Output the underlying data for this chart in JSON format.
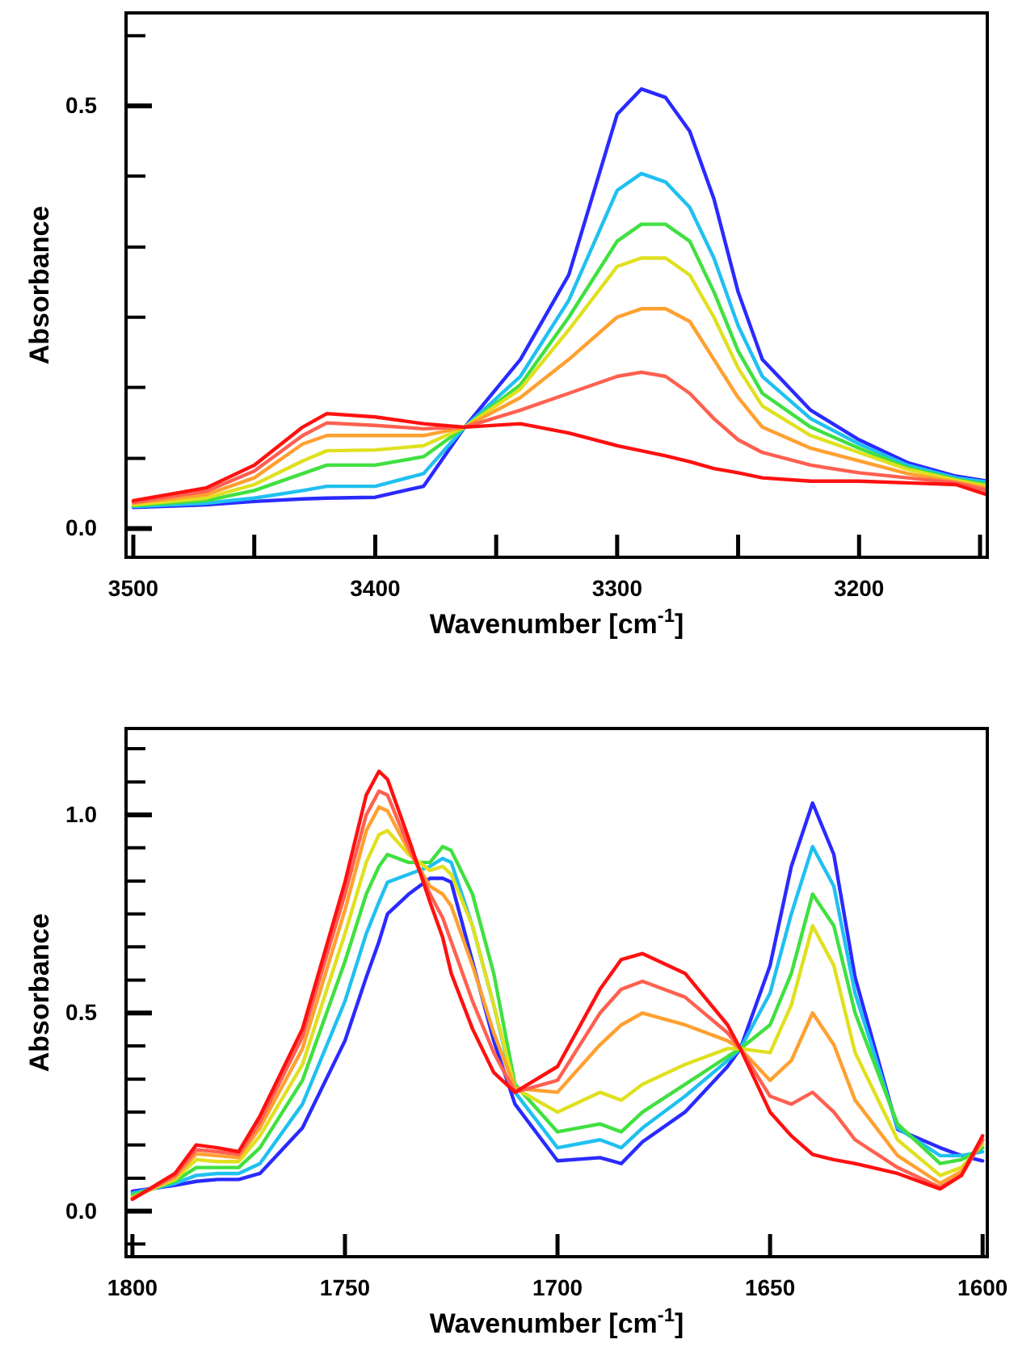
{
  "chart_data": [
    {
      "type": "line",
      "xlabel": "Wavenumber [cm$^{-1}$]",
      "ylabel": "Absorbance",
      "xlim": [
        3503,
        3147
      ],
      "ylim": [
        -0.034,
        0.61
      ],
      "xticks": [
        3500,
        {
          "value": 3450,
          "label": null
        },
        3400,
        {
          "value": 3350,
          "label": null
        },
        3300,
        {
          "value": 3250,
          "label": null
        },
        3200,
        {
          "value": 3150,
          "label": null
        }
      ],
      "yticks": [
        {
          "value": 0,
          "label": "0.0"
        },
        {
          "value": 0.083,
          "label": null
        },
        {
          "value": 0.167,
          "label": null
        },
        {
          "value": 0.25,
          "label": null
        },
        {
          "value": 0.333,
          "label": null
        },
        {
          "value": 0.417,
          "label": null
        },
        {
          "value": 0.5,
          "label": "0.5"
        },
        {
          "value": 0.583,
          "label": null
        }
      ],
      "x": [
        3500,
        3470,
        3450,
        3430,
        3420,
        3400,
        3380,
        3363,
        3340,
        3320,
        3300,
        3290,
        3280,
        3270,
        3260,
        3250,
        3240,
        3220,
        3200,
        3180,
        3160,
        3147
      ],
      "series": [
        {
          "color": "#2a2aff",
          "values": [
            0.025,
            0.028,
            0.032,
            0.035,
            0.036,
            0.037,
            0.05,
            0.12,
            0.2,
            0.3,
            0.49,
            0.52,
            0.51,
            0.47,
            0.39,
            0.28,
            0.2,
            0.14,
            0.105,
            0.078,
            0.062,
            0.056
          ]
        },
        {
          "color": "#20c0f0",
          "values": [
            0.026,
            0.03,
            0.036,
            0.045,
            0.05,
            0.05,
            0.065,
            0.12,
            0.18,
            0.27,
            0.4,
            0.42,
            0.41,
            0.38,
            0.32,
            0.24,
            0.18,
            0.13,
            0.1,
            0.075,
            0.06,
            0.055
          ]
        },
        {
          "color": "#40e040",
          "values": [
            0.027,
            0.033,
            0.045,
            0.065,
            0.075,
            0.075,
            0.085,
            0.12,
            0.17,
            0.25,
            0.34,
            0.36,
            0.36,
            0.34,
            0.28,
            0.21,
            0.16,
            0.12,
            0.095,
            0.072,
            0.058,
            0.052
          ]
        },
        {
          "color": "#e0e020",
          "values": [
            0.028,
            0.036,
            0.052,
            0.08,
            0.092,
            0.093,
            0.098,
            0.12,
            0.165,
            0.235,
            0.31,
            0.32,
            0.32,
            0.3,
            0.25,
            0.19,
            0.145,
            0.11,
            0.09,
            0.07,
            0.057,
            0.05
          ]
        },
        {
          "color": "#ffa030",
          "values": [
            0.03,
            0.04,
            0.06,
            0.1,
            0.11,
            0.11,
            0.11,
            0.12,
            0.155,
            0.2,
            0.25,
            0.26,
            0.26,
            0.245,
            0.2,
            0.155,
            0.12,
            0.095,
            0.08,
            0.065,
            0.055,
            0.048
          ]
        },
        {
          "color": "#ff6050",
          "values": [
            0.031,
            0.044,
            0.068,
            0.11,
            0.125,
            0.122,
            0.118,
            0.12,
            0.14,
            0.16,
            0.18,
            0.185,
            0.18,
            0.16,
            0.13,
            0.105,
            0.09,
            0.075,
            0.066,
            0.06,
            0.054,
            0.045
          ]
        },
        {
          "color": "#ff1010",
          "values": [
            0.033,
            0.048,
            0.075,
            0.12,
            0.136,
            0.132,
            0.124,
            0.12,
            0.124,
            0.113,
            0.098,
            0.092,
            0.086,
            0.079,
            0.071,
            0.066,
            0.06,
            0.056,
            0.056,
            0.054,
            0.052,
            0.04
          ]
        }
      ]
    },
    {
      "type": "line",
      "xlabel": "Wavenumber [cm$^{-1}$]",
      "ylabel": "Absorbance",
      "xlim": [
        1801.5,
        1598.9
      ],
      "ylim": [
        -0.115,
        1.218
      ],
      "xticks": [
        1800,
        1750,
        1700,
        1650,
        1600
      ],
      "yticks": [
        {
          "value": -0.083,
          "label": null
        },
        {
          "value": 0,
          "label": "0.0"
        },
        {
          "value": 0.083,
          "label": null
        },
        {
          "value": 0.167,
          "label": null
        },
        {
          "value": 0.25,
          "label": null
        },
        {
          "value": 0.333,
          "label": null
        },
        {
          "value": 0.417,
          "label": null
        },
        {
          "value": 0.5,
          "label": "0.5"
        },
        {
          "value": 0.583,
          "label": null
        },
        {
          "value": 0.667,
          "label": null
        },
        {
          "value": 0.75,
          "label": null
        },
        {
          "value": 0.833,
          "label": null
        },
        {
          "value": 0.917,
          "label": null
        },
        {
          "value": 1,
          "label": "1.0"
        },
        {
          "value": 1.083,
          "label": null
        },
        {
          "value": 1.167,
          "label": null
        }
      ],
      "x": [
        1800,
        1790,
        1785,
        1780,
        1775,
        1770,
        1760,
        1750,
        1745,
        1742,
        1740,
        1735,
        1730,
        1727,
        1725,
        1720,
        1715,
        1710,
        1700,
        1690,
        1685,
        1680,
        1670,
        1660,
        1657,
        1650,
        1645,
        1640,
        1635,
        1630,
        1620,
        1610,
        1605,
        1600
      ],
      "series": [
        {
          "color": "#2a2aff",
          "values": [
            0.05,
            0.065,
            0.075,
            0.08,
            0.08,
            0.095,
            0.21,
            0.43,
            0.59,
            0.68,
            0.75,
            0.8,
            0.84,
            0.84,
            0.83,
            0.63,
            0.43,
            0.27,
            0.127,
            0.135,
            0.12,
            0.175,
            0.25,
            0.365,
            0.41,
            0.62,
            0.87,
            1.03,
            0.9,
            0.59,
            0.206,
            0.16,
            0.14,
            0.127
          ]
        },
        {
          "color": "#20c0f0",
          "values": [
            0.045,
            0.07,
            0.09,
            0.095,
            0.095,
            0.12,
            0.27,
            0.53,
            0.7,
            0.78,
            0.83,
            0.85,
            0.87,
            0.89,
            0.88,
            0.72,
            0.52,
            0.3,
            0.16,
            0.18,
            0.16,
            0.21,
            0.29,
            0.38,
            0.41,
            0.55,
            0.75,
            0.92,
            0.82,
            0.55,
            0.21,
            0.14,
            0.14,
            0.15
          ]
        },
        {
          "color": "#40e040",
          "values": [
            0.04,
            0.075,
            0.11,
            0.11,
            0.11,
            0.16,
            0.33,
            0.63,
            0.8,
            0.87,
            0.9,
            0.88,
            0.88,
            0.92,
            0.91,
            0.8,
            0.6,
            0.32,
            0.2,
            0.22,
            0.2,
            0.25,
            0.32,
            0.39,
            0.41,
            0.47,
            0.6,
            0.8,
            0.72,
            0.5,
            0.22,
            0.12,
            0.13,
            0.16
          ]
        },
        {
          "color": "#e0e020",
          "values": [
            0.035,
            0.08,
            0.13,
            0.125,
            0.125,
            0.19,
            0.37,
            0.7,
            0.88,
            0.95,
            0.96,
            0.9,
            0.86,
            0.87,
            0.85,
            0.72,
            0.52,
            0.31,
            0.25,
            0.3,
            0.28,
            0.32,
            0.37,
            0.41,
            0.41,
            0.4,
            0.52,
            0.72,
            0.62,
            0.4,
            0.18,
            0.09,
            0.11,
            0.17
          ]
        },
        {
          "color": "#ffa030",
          "values": [
            0.033,
            0.085,
            0.145,
            0.14,
            0.135,
            0.21,
            0.41,
            0.76,
            0.96,
            1.02,
            1.01,
            0.91,
            0.82,
            0.8,
            0.77,
            0.62,
            0.45,
            0.31,
            0.3,
            0.42,
            0.47,
            0.5,
            0.47,
            0.43,
            0.41,
            0.33,
            0.38,
            0.5,
            0.42,
            0.28,
            0.14,
            0.07,
            0.1,
            0.18
          ]
        },
        {
          "color": "#ff6050",
          "values": [
            0.031,
            0.09,
            0.155,
            0.15,
            0.143,
            0.225,
            0.44,
            0.8,
            1,
            1.06,
            1.05,
            0.92,
            0.8,
            0.74,
            0.68,
            0.53,
            0.4,
            0.3,
            0.33,
            0.5,
            0.56,
            0.58,
            0.54,
            0.45,
            0.41,
            0.29,
            0.27,
            0.3,
            0.25,
            0.18,
            0.11,
            0.06,
            0.09,
            0.18
          ]
        },
        {
          "color": "#ff1010",
          "values": [
            0.03,
            0.095,
            0.167,
            0.16,
            0.15,
            0.24,
            0.46,
            0.83,
            1.05,
            1.11,
            1.09,
            0.94,
            0.78,
            0.69,
            0.6,
            0.46,
            0.35,
            0.3,
            0.365,
            0.56,
            0.635,
            0.65,
            0.6,
            0.47,
            0.41,
            0.25,
            0.19,
            0.143,
            0.13,
            0.12,
            0.095,
            0.056,
            0.09,
            0.19
          ]
        }
      ]
    }
  ]
}
